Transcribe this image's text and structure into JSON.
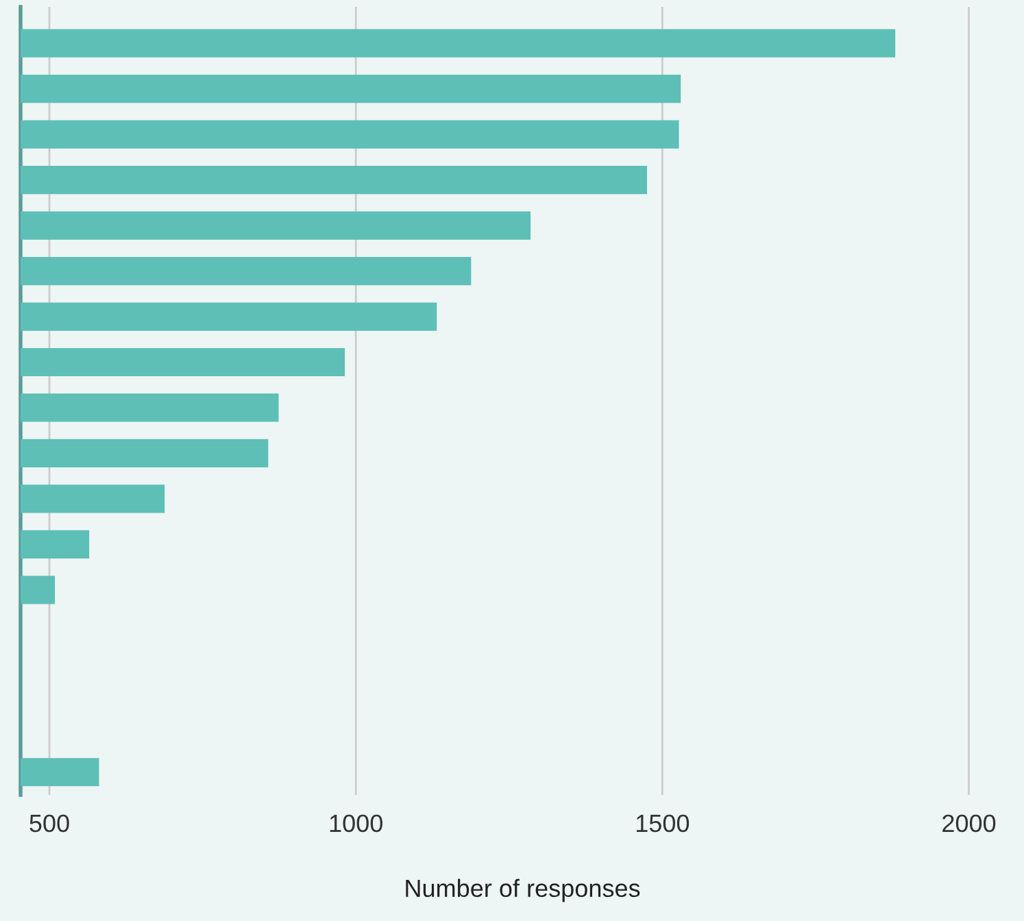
{
  "chart_data": {
    "type": "bar",
    "orientation": "horizontal",
    "xlabel": "Number of responses",
    "categories": [
      null,
      null,
      null,
      null,
      null,
      null,
      null,
      null,
      null,
      null,
      null,
      null,
      null,
      null,
      null,
      null,
      null
    ],
    "values": [
      1880,
      1530,
      1527,
      1475,
      1285,
      1188,
      1132,
      982,
      874,
      857,
      688,
      565,
      509,
      null,
      null,
      null,
      581
    ],
    "color": "#5dbfb6",
    "xlim": [
      453,
      2090
    ],
    "xticks": [
      500,
      1000,
      1500,
      2000
    ],
    "grid": "x"
  }
}
